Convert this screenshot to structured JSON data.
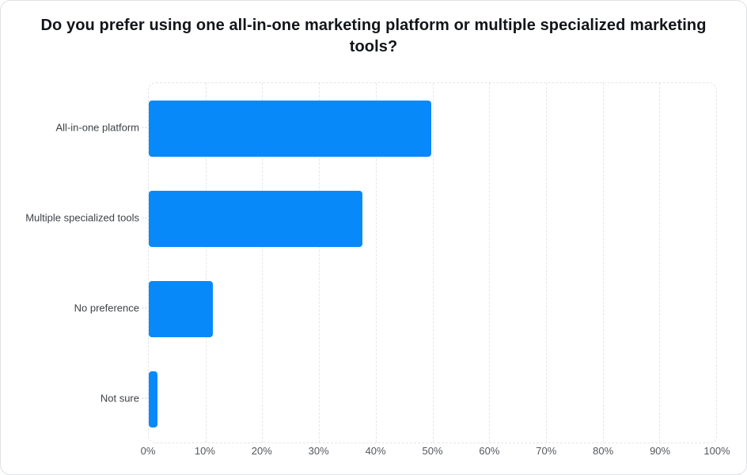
{
  "chart": {
    "title": "Do you prefer using one all-in-one marketing platform or multiple specialized marketing tools?"
  },
  "chart_data": {
    "type": "bar",
    "orientation": "horizontal",
    "title": "Do you prefer using one all-in-one marketing platform or multiple specialized marketing tools?",
    "categories": [
      "All-in-one platform",
      "Multiple specialized tools",
      "No preference",
      "Not sure"
    ],
    "values": [
      49.8,
      37.6,
      11.3,
      1.5
    ],
    "unit": "%",
    "xlabel": "",
    "ylabel": "",
    "xlim": [
      0,
      100
    ],
    "x_ticks": [
      "0%",
      "10%",
      "20%",
      "30%",
      "40%",
      "50%",
      "60%",
      "70%",
      "80%",
      "90%",
      "100%"
    ],
    "grid": "dashed vertical gridlines every 10%, dashed rounded border around plot area",
    "legend": "none"
  },
  "colors": {
    "bar": "#0889FA",
    "grid": "#e4e6e9",
    "category_label": "#3e4247",
    "tick_label": "#54575c",
    "title": "#121519",
    "background": "#ffffff",
    "card_border": "#dfe1e5"
  }
}
